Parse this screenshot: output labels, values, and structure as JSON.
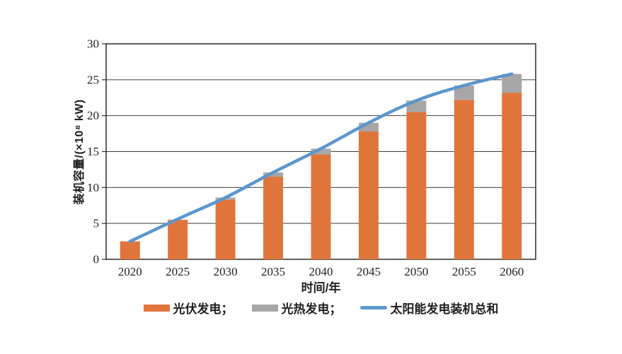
{
  "chart_data": {
    "type": "bar",
    "stacked": true,
    "title": "",
    "xlabel": "时间/年",
    "ylabel": "装机容量/(×10⁸ kW)",
    "categories": [
      "2020",
      "2025",
      "2030",
      "2035",
      "2040",
      "2045",
      "2050",
      "2055",
      "2060"
    ],
    "series": [
      {
        "name": "光伏发电",
        "type": "bar",
        "color": "#E0753C",
        "values": [
          2.5,
          5.5,
          8.3,
          11.5,
          14.6,
          17.8,
          20.5,
          22.2,
          23.2
        ]
      },
      {
        "name": "光热发电",
        "type": "bar",
        "color": "#A7A7A7",
        "values": [
          0,
          0,
          0.3,
          0.6,
          0.8,
          1.2,
          1.6,
          2.0,
          2.6
        ]
      },
      {
        "name": "太阳能发电装机总和",
        "type": "line",
        "color": "#5B96CE",
        "values": [
          2.5,
          5.6,
          8.6,
          12.1,
          15.4,
          19.0,
          22.1,
          24.2,
          25.8
        ]
      }
    ],
    "legend_labels": [
      "光伏发电；",
      "光热发电；",
      "太阳能发电装机总和"
    ],
    "ylim": [
      0,
      30
    ],
    "ytick_step": 5,
    "yticks": [
      0,
      5,
      10,
      15,
      20,
      25,
      30
    ],
    "grid": "horizontal",
    "legend_position": "bottom"
  },
  "colors": {
    "grid_line": "#3d3d3d",
    "plot_border": "#2b2b2b",
    "text": "#1f1f1f",
    "background": "#ffffff"
  }
}
